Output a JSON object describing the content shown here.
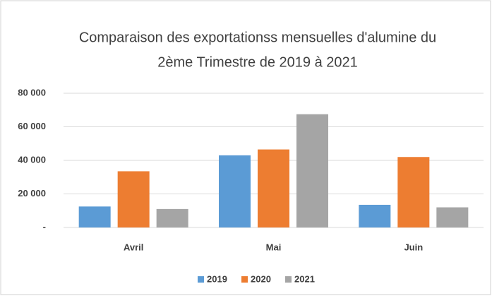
{
  "chart_data": {
    "type": "bar",
    "title": [
      "Comparaison  des exportationss mensuelles d'alumine du",
      "2ème Trimestre de 2019 à 2021"
    ],
    "categories": [
      "Avril",
      "Mai",
      "Juin"
    ],
    "series": [
      {
        "name": "2019",
        "color": "#5b9bd5",
        "values": [
          12500,
          43000,
          13500
        ]
      },
      {
        "name": "2020",
        "color": "#ed7d31",
        "values": [
          33500,
          46500,
          42000
        ]
      },
      {
        "name": "2021",
        "color": "#a5a5a5",
        "values": [
          11000,
          67500,
          12000
        ]
      }
    ],
    "ylim": [
      0,
      80000
    ],
    "yticks": [
      {
        "value": 0,
        "label": "-"
      },
      {
        "value": 20000,
        "label": "20 000"
      },
      {
        "value": 40000,
        "label": "40 000"
      },
      {
        "value": 60000,
        "label": "60 000"
      },
      {
        "value": 80000,
        "label": "80 000"
      }
    ],
    "grid": true,
    "legend": "bottom"
  }
}
